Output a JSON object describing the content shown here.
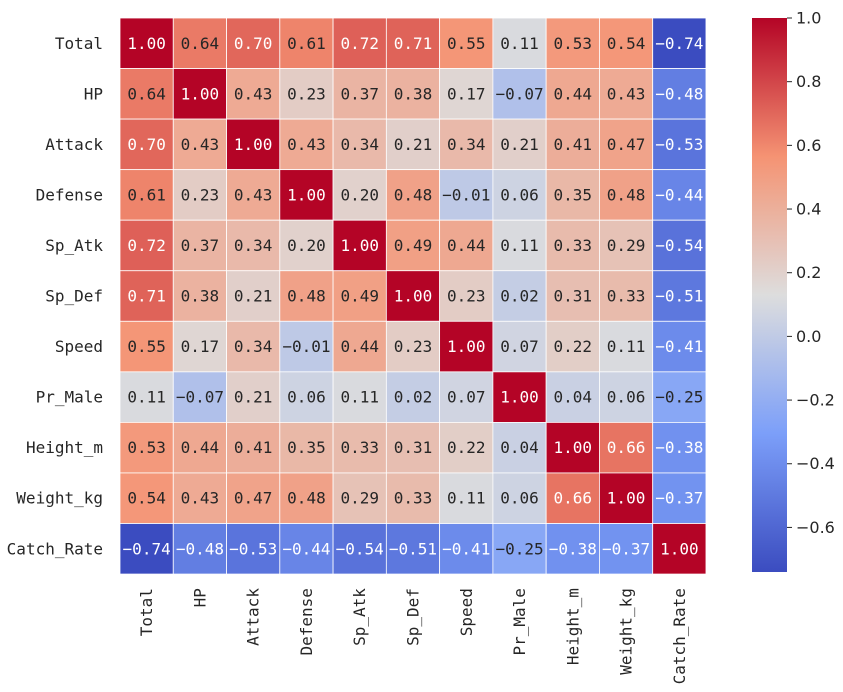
{
  "chart_data": {
    "type": "heatmap",
    "title": "",
    "xlabel": "",
    "ylabel": "",
    "colormap": "coolwarm",
    "value_format": "2 decimals",
    "vmin": -0.74,
    "vmax": 1.0,
    "grid_line_color": "#ffffff",
    "rows": [
      "Total",
      "HP",
      "Attack",
      "Defense",
      "Sp_Atk",
      "Sp_Def",
      "Speed",
      "Pr_Male",
      "Height_m",
      "Weight_kg",
      "Catch_Rate"
    ],
    "columns": [
      "Total",
      "HP",
      "Attack",
      "Defense",
      "Sp_Atk",
      "Sp_Def",
      "Speed",
      "Pr_Male",
      "Height_m",
      "Weight_kg",
      "Catch_Rate"
    ],
    "values": [
      [
        1.0,
        0.64,
        0.7,
        0.61,
        0.72,
        0.71,
        0.55,
        0.11,
        0.53,
        0.54,
        -0.74
      ],
      [
        0.64,
        1.0,
        0.43,
        0.23,
        0.37,
        0.38,
        0.17,
        -0.07,
        0.44,
        0.43,
        -0.48
      ],
      [
        0.7,
        0.43,
        1.0,
        0.43,
        0.34,
        0.21,
        0.34,
        0.21,
        0.41,
        0.47,
        -0.53
      ],
      [
        0.61,
        0.23,
        0.43,
        1.0,
        0.2,
        0.48,
        -0.01,
        0.06,
        0.35,
        0.48,
        -0.44
      ],
      [
        0.72,
        0.37,
        0.34,
        0.2,
        1.0,
        0.49,
        0.44,
        0.11,
        0.33,
        0.29,
        -0.54
      ],
      [
        0.71,
        0.38,
        0.21,
        0.48,
        0.49,
        1.0,
        0.23,
        0.02,
        0.31,
        0.33,
        -0.51
      ],
      [
        0.55,
        0.17,
        0.34,
        -0.01,
        0.44,
        0.23,
        1.0,
        0.07,
        0.22,
        0.11,
        -0.41
      ],
      [
        0.11,
        -0.07,
        0.21,
        0.06,
        0.11,
        0.02,
        0.07,
        1.0,
        0.04,
        0.06,
        -0.25
      ],
      [
        0.53,
        0.44,
        0.41,
        0.35,
        0.33,
        0.31,
        0.22,
        0.04,
        1.0,
        0.66,
        -0.38
      ],
      [
        0.54,
        0.43,
        0.47,
        0.48,
        0.29,
        0.33,
        0.11,
        0.06,
        0.66,
        1.0,
        -0.37
      ],
      [
        -0.74,
        -0.48,
        -0.53,
        -0.44,
        -0.54,
        -0.51,
        -0.41,
        -0.25,
        -0.38,
        -0.37,
        1.0
      ]
    ],
    "colorbar": {
      "range": [
        -0.74,
        1.0
      ],
      "ticks": [
        1.0,
        0.8,
        0.6,
        0.4,
        0.2,
        0.0,
        -0.2,
        -0.4,
        -0.6
      ],
      "tick_labels": [
        "1.0",
        "0.8",
        "0.6",
        "0.4",
        "0.2",
        "0.0",
        "−0.2",
        "−0.4",
        "−0.6"
      ]
    }
  }
}
